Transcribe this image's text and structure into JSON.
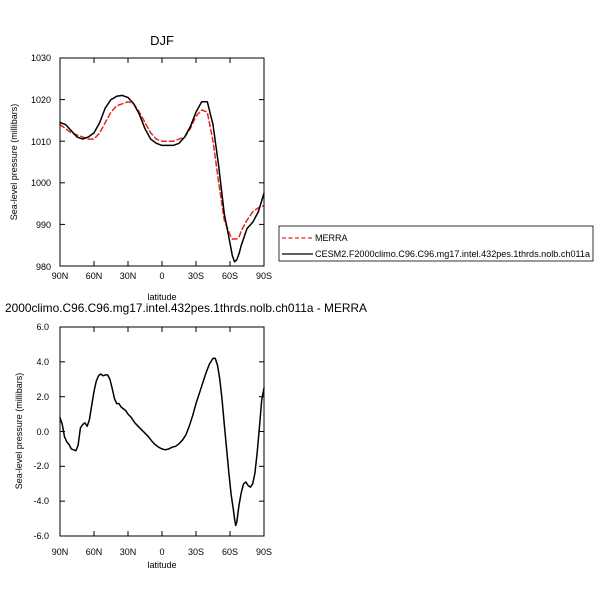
{
  "chart_data": [
    {
      "type": "line",
      "title": "DJF",
      "xlabel": "latitude",
      "ylabel": "Sea-level pressure (millibars)",
      "xlim": [
        -90,
        90
      ],
      "ylim": [
        980,
        1030
      ],
      "xticks": [
        -90,
        -60,
        -30,
        0,
        30,
        60,
        90
      ],
      "xtick_labels": [
        "90N",
        "60N",
        "30N",
        "0",
        "30S",
        "60S",
        "90S"
      ],
      "yticks": [
        980,
        990,
        1000,
        1010,
        1020,
        1030
      ],
      "ytick_labels": [
        "980",
        "990",
        "1000",
        "1010",
        "1020",
        "1030"
      ],
      "grid": false,
      "legend": "outside-right",
      "x": [
        -90,
        -85,
        -80,
        -75,
        -70,
        -65,
        -60,
        -55,
        -50,
        -45,
        -40,
        -35,
        -30,
        -25,
        -20,
        -15,
        -10,
        -5,
        0,
        5,
        10,
        15,
        20,
        25,
        30,
        35,
        40,
        45,
        50,
        55,
        60,
        62,
        64,
        66,
        68,
        70,
        75,
        80,
        85,
        90
      ],
      "series": [
        {
          "name": "MERRA",
          "color": "#e8261c",
          "dash": "dashed",
          "values": [
            1014,
            1013,
            1012,
            1011.5,
            1011,
            1010.5,
            1010.5,
            1012,
            1014.5,
            1017,
            1018.5,
            1019,
            1019.5,
            1019,
            1017,
            1014.5,
            1012,
            1010.5,
            1010,
            1010,
            1010,
            1010.5,
            1011,
            1013,
            1016,
            1017.5,
            1017,
            1010,
            1000,
            991,
            987.5,
            986.5,
            986.5,
            986.5,
            987,
            988.5,
            991,
            993,
            994,
            994.5
          ]
        },
        {
          "name": "CESM2.F2000climo.C96.C96.mg17.intel.432pes.1thrds.nolb.ch011a",
          "color": "#000000",
          "dash": "solid",
          "values": [
            1014.5,
            1014,
            1012.5,
            1011,
            1010.5,
            1011,
            1012,
            1014.5,
            1018,
            1020,
            1020.8,
            1021,
            1020.5,
            1019,
            1016.5,
            1013,
            1010.5,
            1009.5,
            1009,
            1009,
            1009,
            1009.5,
            1011,
            1013.5,
            1017,
            1019.5,
            1019.5,
            1014,
            1004,
            992.5,
            985.5,
            982.5,
            981,
            981.5,
            983,
            985,
            989,
            990.5,
            993,
            997.5
          ]
        }
      ]
    },
    {
      "type": "line",
      "title": "2000climo.C96.C96.mg17.intel.432pes.1thrds.nolb.ch011a - MERRA",
      "xlabel": "latitude",
      "ylabel": "Sea-level pressure (millibars)",
      "xlim": [
        -90,
        90
      ],
      "ylim": [
        -6,
        6
      ],
      "xticks": [
        -90,
        -60,
        -30,
        0,
        30,
        60,
        90
      ],
      "xtick_labels": [
        "90N",
        "60N",
        "30N",
        "0",
        "30S",
        "60S",
        "90S"
      ],
      "yticks": [
        -6,
        -4,
        -2,
        0,
        2,
        4,
        6
      ],
      "ytick_labels": [
        "-6.0",
        "-4.0",
        "-2.0",
        "0.0",
        "2.0",
        "4.0",
        "6.0"
      ],
      "grid": false,
      "x": [
        -90,
        -88,
        -86,
        -84,
        -82,
        -80,
        -78,
        -76,
        -74,
        -72,
        -70,
        -68,
        -66,
        -64,
        -62,
        -60,
        -58,
        -56,
        -54,
        -52,
        -50,
        -48,
        -46,
        -44,
        -42,
        -40,
        -38,
        -36,
        -34,
        -32,
        -30,
        -27,
        -24,
        -21,
        -18,
        -15,
        -12,
        -9,
        -6,
        -3,
        0,
        3,
        6,
        9,
        12,
        15,
        18,
        21,
        24,
        27,
        30,
        33,
        36,
        39,
        42,
        45,
        47,
        49,
        51,
        53,
        55,
        57,
        59,
        61,
        63,
        64,
        65,
        66,
        67,
        68,
        70,
        72,
        74,
        76,
        78,
        80,
        82,
        84,
        86,
        88,
        90
      ],
      "series": [
        {
          "name": "",
          "color": "#000000",
          "dash": "solid",
          "values": [
            0.8,
            0.4,
            -0.3,
            -0.6,
            -0.75,
            -1.0,
            -1.05,
            -1.1,
            -0.8,
            0.2,
            0.4,
            0.5,
            0.3,
            0.7,
            1.5,
            2.3,
            2.9,
            3.2,
            3.3,
            3.2,
            3.25,
            3.25,
            3.0,
            2.5,
            1.9,
            1.6,
            1.6,
            1.4,
            1.3,
            1.2,
            1.0,
            0.8,
            0.5,
            0.3,
            0.1,
            -0.1,
            -0.3,
            -0.55,
            -0.75,
            -0.9,
            -1.0,
            -1.05,
            -1.0,
            -0.9,
            -0.85,
            -0.7,
            -0.5,
            -0.2,
            0.3,
            0.9,
            1.6,
            2.2,
            2.8,
            3.4,
            3.9,
            4.2,
            4.2,
            3.8,
            3.0,
            1.8,
            0.4,
            -1.0,
            -2.4,
            -3.6,
            -4.5,
            -5.0,
            -5.4,
            -5.2,
            -4.7,
            -4.2,
            -3.5,
            -3.0,
            -2.9,
            -3.1,
            -3.2,
            -3.0,
            -2.4,
            -1.2,
            0.3,
            1.8,
            2.5
          ]
        }
      ]
    }
  ]
}
